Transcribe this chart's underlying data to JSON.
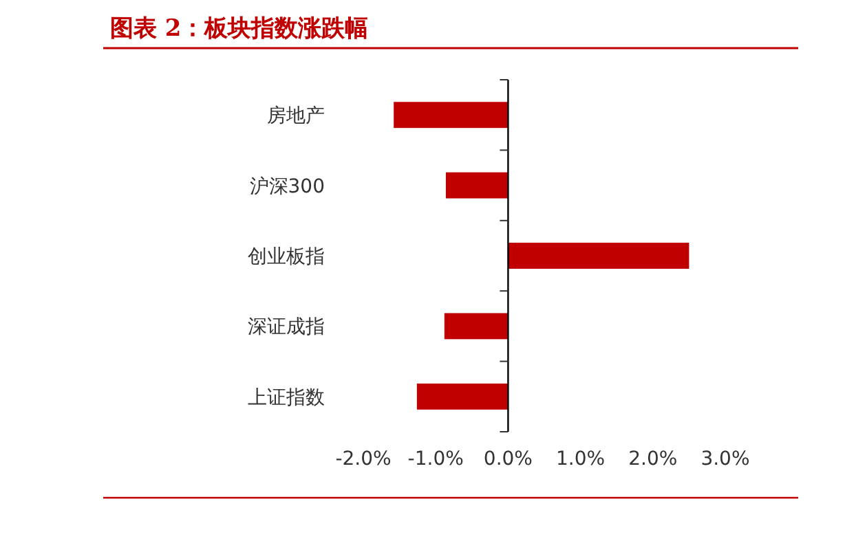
{
  "chart_data": {
    "type": "bar",
    "orientation": "horizontal",
    "title": "图表 2：板块指数涨跌幅",
    "categories": [
      "房地产",
      "沪深300",
      "创业板指",
      "深证成指",
      "上证指数"
    ],
    "values": [
      -1.58,
      -0.86,
      2.5,
      -0.88,
      -1.26
    ],
    "color": "#c00000",
    "xlim": [
      -2,
      3
    ],
    "xticks": [
      {
        "value": -2,
        "label": "-2.0%"
      },
      {
        "value": -1,
        "label": "-1.0%"
      },
      {
        "value": 0,
        "label": "0.0%"
      },
      {
        "value": 1,
        "label": "1.0%"
      },
      {
        "value": 2,
        "label": "2.0%"
      },
      {
        "value": 3,
        "label": "3.0%"
      }
    ],
    "tick_labels": "x"
  }
}
